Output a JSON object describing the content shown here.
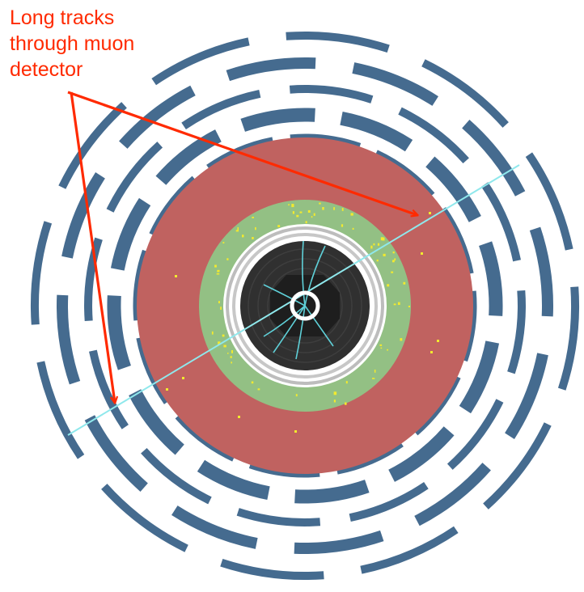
{
  "annotation": {
    "lines": [
      "Long tracks",
      "through muon",
      "detector"
    ]
  },
  "colors": {
    "muon_chambers": "#456b8f",
    "hadron_calorimeter": "#c06260",
    "em_calorimeter": "#93c084",
    "tracker": "#333333",
    "muon_track": "#8fe8ec",
    "energy_deposits": "#f2ea2e",
    "annotation": "#ff2a00"
  },
  "icons": {
    "arrow": "arrow-icon"
  }
}
